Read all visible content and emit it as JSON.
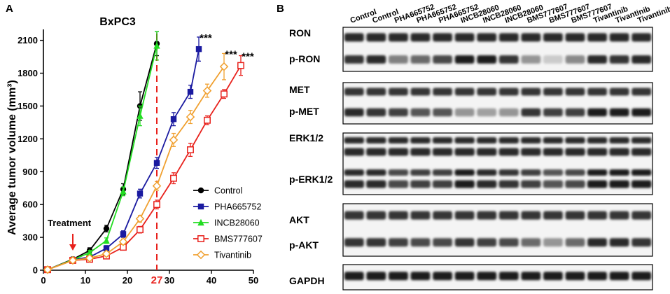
{
  "panel_a": {
    "letter": "A"
  },
  "panel_b": {
    "letter": "B"
  },
  "chart_data": {
    "type": "line",
    "title": "BxPC3",
    "xlabel": "",
    "ylabel": "Average tumor volume (mm³)",
    "xlim": [
      0,
      50
    ],
    "ylim": [
      0,
      2200
    ],
    "xticks": [
      0,
      10,
      20,
      30,
      40,
      50
    ],
    "yticks": [
      0,
      300,
      600,
      900,
      1200,
      1500,
      1800,
      2100
    ],
    "legend_position": "bottom-right",
    "grid": false,
    "reference_line": {
      "x": 27,
      "label": "27",
      "color": "#e8211c"
    },
    "treatment": {
      "label": "Treatment",
      "x": 7,
      "color": "#e8211c"
    },
    "significance_label": "***",
    "series": [
      {
        "name": "Control",
        "color": "#000000",
        "marker": "circle-filled",
        "x": [
          1,
          7,
          11,
          15,
          19,
          23,
          27
        ],
        "y": [
          5,
          100,
          180,
          380,
          740,
          1500,
          2070
        ],
        "err": [
          15,
          20,
          25,
          30,
          50,
          130,
          110
        ],
        "sig": false
      },
      {
        "name": "PHA665752",
        "color": "#1a1aa0",
        "marker": "square-filled",
        "x": [
          1,
          7,
          11,
          15,
          19,
          23,
          27,
          31,
          35,
          37
        ],
        "y": [
          5,
          95,
          120,
          200,
          330,
          700,
          980,
          1380,
          1630,
          2020
        ],
        "err": [
          15,
          18,
          20,
          25,
          30,
          40,
          50,
          60,
          60,
          110
        ],
        "sig": true
      },
      {
        "name": "INCB28060",
        "color": "#22dd22",
        "marker": "triangle-filled",
        "x": [
          1,
          7,
          11,
          15,
          19,
          23,
          27
        ],
        "y": [
          5,
          95,
          160,
          270,
          720,
          1410,
          2050
        ],
        "err": [
          15,
          18,
          20,
          25,
          40,
          90,
          130
        ],
        "sig": false
      },
      {
        "name": "BMS777607",
        "color": "#e8211c",
        "marker": "square-open",
        "x": [
          1,
          7,
          11,
          15,
          19,
          23,
          27,
          31,
          35,
          39,
          43,
          47
        ],
        "y": [
          5,
          90,
          100,
          130,
          210,
          370,
          600,
          840,
          1100,
          1370,
          1610,
          1870
        ],
        "err": [
          15,
          15,
          15,
          20,
          25,
          30,
          40,
          50,
          60,
          40,
          40,
          90
        ],
        "sig": true
      },
      {
        "name": "Tivantinib",
        "color": "#f0a030",
        "marker": "diamond-open",
        "x": [
          1,
          7,
          11,
          15,
          19,
          23,
          27,
          31,
          35,
          39,
          43
        ],
        "y": [
          5,
          90,
          110,
          150,
          260,
          470,
          770,
          1190,
          1400,
          1640,
          1860
        ],
        "err": [
          15,
          15,
          15,
          20,
          25,
          30,
          40,
          60,
          60,
          60,
          120
        ],
        "sig": true
      }
    ]
  },
  "blot": {
    "lanes": [
      "Control",
      "Control",
      "PHA665752",
      "PHA665752",
      "PHA665752",
      "INCB28060",
      "INCB28060",
      "INCB28060",
      "BMS777607",
      "BMS777607",
      "BMS777607",
      "Tivantinib",
      "Tivantinib",
      "Tivantinib"
    ],
    "rows": [
      {
        "label": "RON",
        "intensity": [
          0.9,
          0.9,
          0.9,
          0.9,
          0.9,
          0.9,
          0.9,
          0.9,
          0.9,
          0.9,
          0.9,
          0.9,
          0.9,
          0.9
        ]
      },
      {
        "label": "p-RON",
        "intensity": [
          0.85,
          0.9,
          0.5,
          0.6,
          0.75,
          0.95,
          0.95,
          0.85,
          0.4,
          0.15,
          0.45,
          0.9,
          0.85,
          0.9
        ]
      },
      {
        "label": "MET",
        "intensity": [
          0.85,
          0.85,
          0.85,
          0.85,
          0.85,
          0.85,
          0.85,
          0.85,
          0.85,
          0.85,
          0.85,
          0.85,
          0.85,
          0.85
        ]
      },
      {
        "label": "p-MET",
        "intensity": [
          0.9,
          0.85,
          0.8,
          0.7,
          0.7,
          0.4,
          0.35,
          0.4,
          0.85,
          0.8,
          0.8,
          0.95,
          0.95,
          0.95
        ]
      },
      {
        "label": "ERK1/2",
        "intensity": [
          0.9,
          0.9,
          0.9,
          0.9,
          0.9,
          0.9,
          0.9,
          0.9,
          0.9,
          0.9,
          0.9,
          0.9,
          0.9,
          0.9
        ]
      },
      {
        "label": "p-ERK1/2",
        "intensity": [
          0.9,
          0.9,
          0.75,
          0.8,
          0.8,
          0.95,
          0.9,
          0.85,
          0.8,
          0.7,
          0.75,
          0.95,
          0.95,
          0.95
        ]
      },
      {
        "label": "AKT",
        "intensity": [
          0.85,
          0.85,
          0.85,
          0.85,
          0.85,
          0.85,
          0.85,
          0.85,
          0.85,
          0.85,
          0.85,
          0.85,
          0.85,
          0.85
        ]
      },
      {
        "label": "p-AKT",
        "intensity": [
          0.85,
          0.85,
          0.8,
          0.75,
          0.75,
          0.85,
          0.8,
          0.75,
          0.6,
          0.4,
          0.6,
          0.9,
          0.9,
          0.85
        ]
      },
      {
        "label": "GAPDH",
        "intensity": [
          0.95,
          0.95,
          0.95,
          0.95,
          0.95,
          0.95,
          0.95,
          0.95,
          0.95,
          0.95,
          0.95,
          0.95,
          0.95,
          0.95
        ]
      }
    ]
  }
}
